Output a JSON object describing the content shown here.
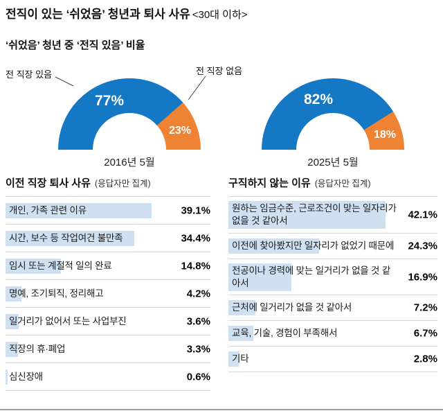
{
  "title": {
    "main": "전직이 있는 ‘쉬었음’ 청년과 퇴사 사유",
    "scope": "<30대 이하>"
  },
  "subtitle": "‘쉬었음’ 청년 중 ‘전직 있음’ 비율",
  "colors": {
    "blue": "#1478c4",
    "orange": "#ef8334",
    "bar_fill": "#cfe1f1"
  },
  "chart_data": [
    {
      "type": "pie",
      "variant": "half-donut",
      "period": "2016년 5월",
      "unit": "%",
      "slices": [
        {
          "label": "전 직장 있음",
          "value": 77,
          "color": "#1478c4"
        },
        {
          "label": "전 직장 없음",
          "value": 23,
          "color": "#ef8334"
        }
      ]
    },
    {
      "type": "pie",
      "variant": "half-donut",
      "period": "2025년 5월",
      "unit": "%",
      "slices": [
        {
          "label": "전 직장 있음",
          "value": 82,
          "color": "#1478c4"
        },
        {
          "label": "전 직장 없음",
          "value": 18,
          "color": "#ef8334"
        }
      ]
    },
    {
      "type": "bar",
      "orientation": "horizontal",
      "title": "이전 직장 퇴사 사유",
      "note": "(응답자만 집계)",
      "unit": "%",
      "categories": [
        "개인, 가족 관련 이유",
        "시간, 보수 등 작업여건 불만족",
        "임시 또는 계절적 일의 완료",
        "명예, 조기퇴직, 정리해고",
        "일거리가 없어서 또는 사업부진",
        "직장의 휴·폐업",
        "심신장애"
      ],
      "values": [
        39.1,
        34.4,
        14.8,
        4.2,
        3.6,
        3.3,
        0.6
      ]
    },
    {
      "type": "bar",
      "orientation": "horizontal",
      "title": "구직하지 않는 이유",
      "note": "(응답자만 집계)",
      "unit": "%",
      "categories": [
        "원하는 임금수준, 근로조건이 맞는 일자리가 없을 것 같아서",
        "이전에 찾아봤지만 일자리가 없었기 때문에",
        "전공이나 경력에 맞는 일거리가 없을 것 같아서",
        "근처에 일거리가 없을 것 같아서",
        "교육, 기술, 경험이 부족해서",
        "기타"
      ],
      "values": [
        42.1,
        24.3,
        16.9,
        7.2,
        6.7,
        2.8
      ]
    }
  ]
}
